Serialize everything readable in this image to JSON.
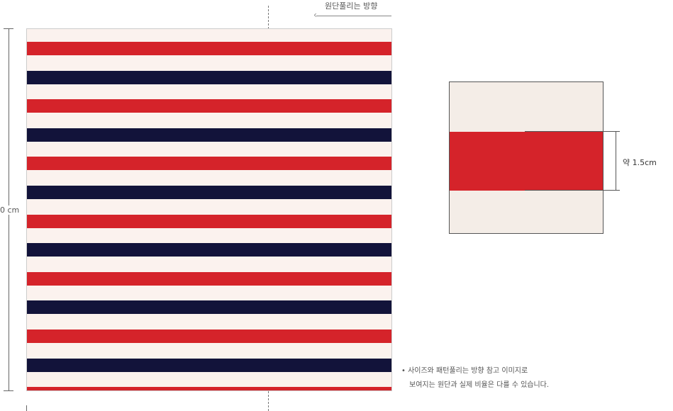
{
  "direction_label": "원단풀리는 방향",
  "height_label": "0 cm",
  "swatch_width_label": "약 1.5cm",
  "note_line1": "• 사이즈와 패턴풀리는 방향 참고 이미지로",
  "note_line2": "보여지는 원단과 실제 비율은 다를 수 있습니다.",
  "colors": {
    "background": "#fbf2ee",
    "red": "#d5232a",
    "navy": "#12133a"
  },
  "stripe_sequence": [
    "red",
    "navy"
  ]
}
